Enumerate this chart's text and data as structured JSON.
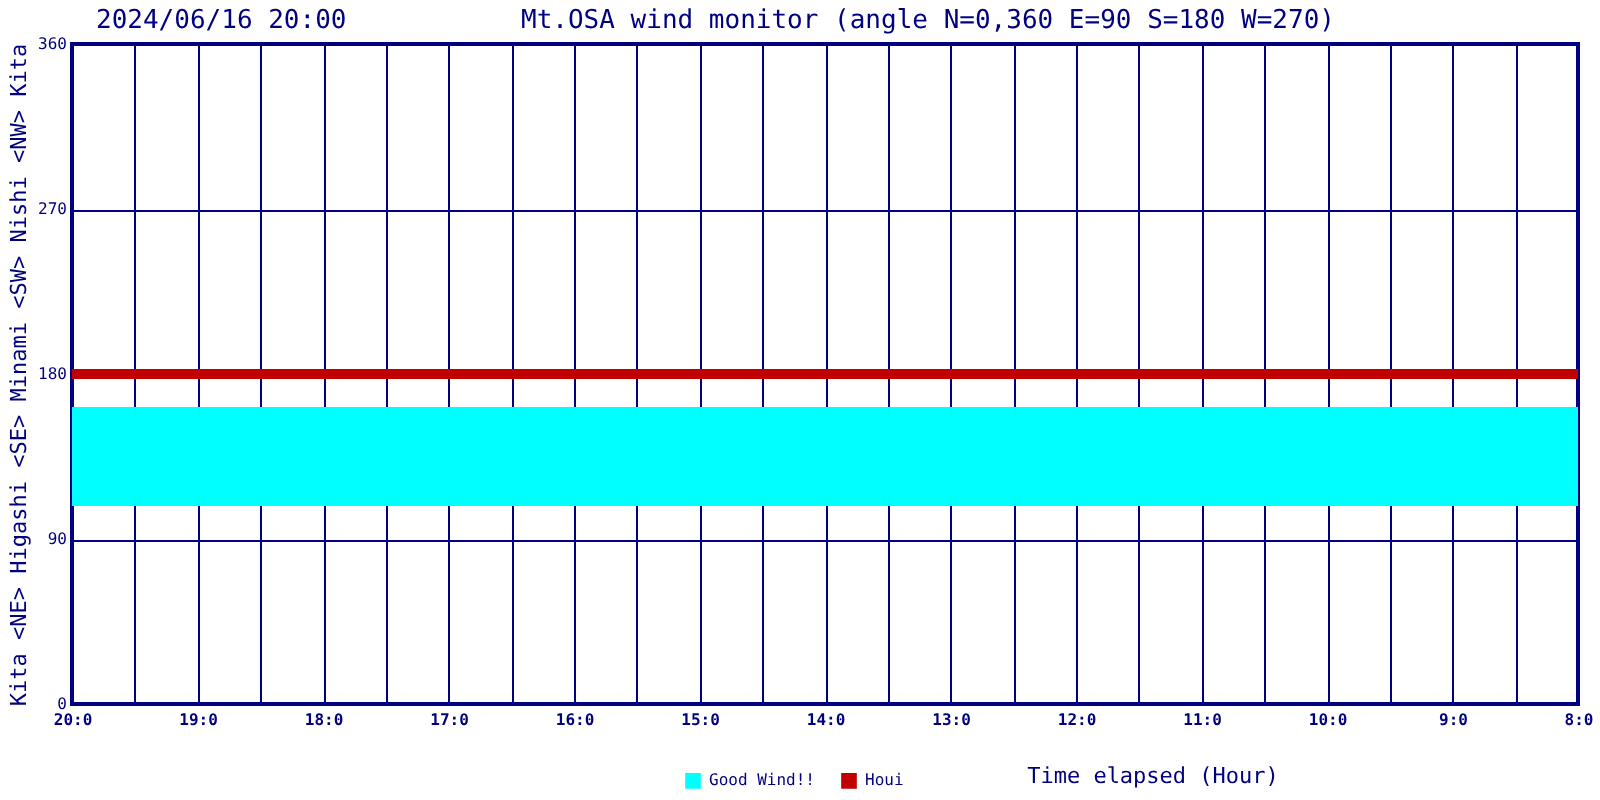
{
  "chart_data": {
    "type": "line",
    "title": "Mt.OSA wind monitor (angle N=0,360 E=90 S=180 W=270)",
    "annotations": [
      "2024/06/16 20:00"
    ],
    "xlabel": "Time elapsed (Hour)",
    "ylabel": "Kita <NE> Higashi <SE> Minami <SW> Nishi <NW> Kita",
    "categories": [
      "20:0",
      null,
      "19:0",
      null,
      "18:0",
      null,
      "17:0",
      null,
      "16:0",
      null,
      "15:0",
      null,
      "14:0",
      null,
      "13:0",
      null,
      "12:0",
      null,
      "11:0",
      null,
      "10:0",
      null,
      "9:0",
      null,
      "8:0"
    ],
    "series": [
      {
        "name": "Houi",
        "color": "#c00000",
        "values": [
          180,
          180,
          180,
          180,
          180,
          180,
          180,
          180,
          180,
          180,
          180,
          180,
          180,
          180,
          180,
          180,
          180,
          180,
          180,
          180,
          180,
          180,
          180,
          180,
          180
        ]
      }
    ],
    "bands": [
      {
        "axis": "y",
        "from": 108,
        "to": 162,
        "label": "Good Wind!!",
        "color": "#00ffff"
      }
    ],
    "ylim": [
      0,
      360
    ],
    "yticks": [
      0,
      90,
      180,
      270,
      360
    ],
    "grid": true,
    "legend": "bottom",
    "line_style": "solid",
    "marker": "none"
  }
}
